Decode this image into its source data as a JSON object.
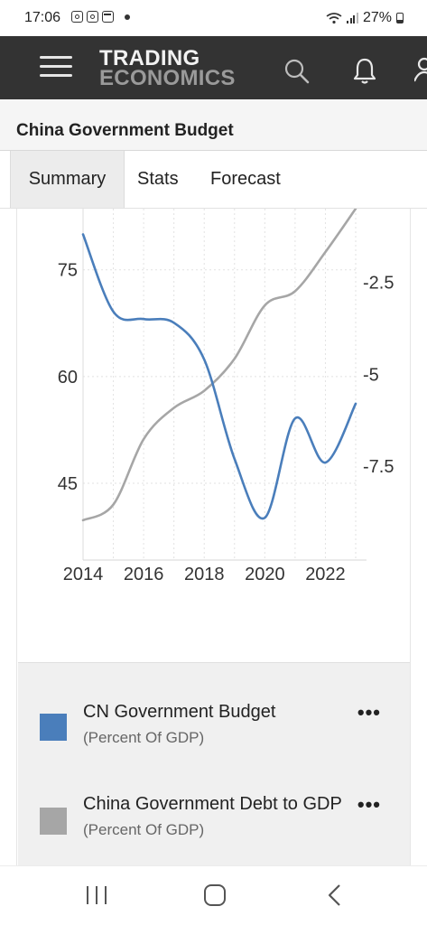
{
  "status_bar": {
    "time": "17:06",
    "battery": "27%"
  },
  "app_header": {
    "logo_line1": "TRADING",
    "logo_line2": "ECONOMICS"
  },
  "page": {
    "title": "China Government Budget"
  },
  "tabs": [
    {
      "label": "Summary",
      "active": true
    },
    {
      "label": "Stats",
      "active": false
    },
    {
      "label": "Forecast",
      "active": false
    }
  ],
  "chart_data": {
    "type": "line",
    "x_ticks": [
      "2014",
      "2016",
      "2018",
      "2020",
      "2022"
    ],
    "xlim": [
      2014,
      2023
    ],
    "left_axis": {
      "ticks": [
        "75",
        "60",
        "45"
      ],
      "range": [
        34.2,
        83.6
      ],
      "series": "China Government Debt to GDP"
    },
    "right_axis": {
      "ticks": [
        "-2.5",
        "-5",
        "-7.5"
      ],
      "range": [
        -10.05,
        -0.5
      ],
      "series": "CN Government Budget"
    },
    "series": [
      {
        "name": "CN Government Budget",
        "unit": "Percent Of GDP",
        "color": "#4a7ebb",
        "axis": "right",
        "x": [
          2014,
          2015,
          2016,
          2017,
          2018,
          2019,
          2020,
          2021,
          2022,
          2023
        ],
        "values": [
          -1.2,
          -3.3,
          -3.5,
          -3.6,
          -4.6,
          -7.3,
          -8.9,
          -6.2,
          -7.4,
          -5.8
        ]
      },
      {
        "name": "China Government Debt to GDP",
        "unit": "Percent Of GDP",
        "color": "#a6a6a6",
        "axis": "left",
        "x": [
          2014,
          2015,
          2016,
          2017,
          2018,
          2019,
          2020,
          2021,
          2022,
          2023
        ],
        "values": [
          39.8,
          42.0,
          51.2,
          55.6,
          58.0,
          62.5,
          70.0,
          72.0,
          77.5,
          83.6
        ]
      }
    ]
  },
  "legend": [
    {
      "name": "CN Government Budget",
      "unit": "(Percent Of GDP)",
      "color": "#4a7ebb",
      "menu": "•••"
    },
    {
      "name": "China Government Debt to GDP",
      "unit": "(Percent Of GDP)",
      "color": "#a6a6a6",
      "menu": "•••"
    }
  ]
}
